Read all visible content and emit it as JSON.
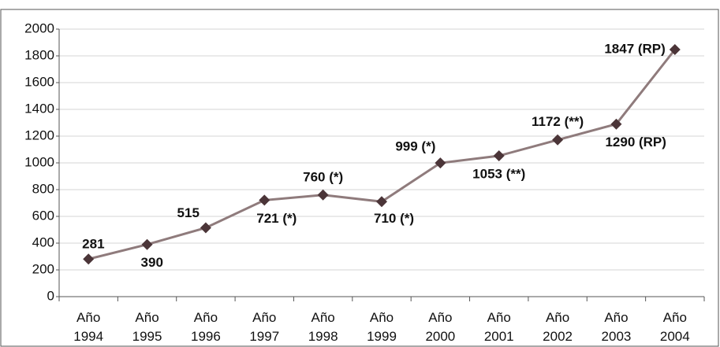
{
  "chart_data": {
    "type": "line",
    "categories": [
      "Año 1994",
      "Año 1995",
      "Año 1996",
      "Año 1997",
      "Año 1998",
      "Año 1999",
      "Año 2000",
      "Año 2001",
      "Año 2002",
      "Año 2003",
      "Año 2004"
    ],
    "values": [
      281,
      390,
      515,
      721,
      760,
      710,
      999,
      1053,
      1172,
      1290,
      1847
    ],
    "value_labels": [
      "281",
      "390",
      "515",
      "721 (*)",
      "760 (*)",
      "710 (*)",
      "999 (*)",
      "1053 (**)",
      "1172 (**)",
      "1290 (RP)",
      "1847 (RP)"
    ],
    "color": "#8f7b7c",
    "marker_color": "#4b3538",
    "ylim": [
      0,
      2000
    ],
    "yticks": [
      0,
      200,
      400,
      600,
      800,
      1000,
      1200,
      1400,
      1600,
      1800,
      2000
    ],
    "grid": true
  }
}
